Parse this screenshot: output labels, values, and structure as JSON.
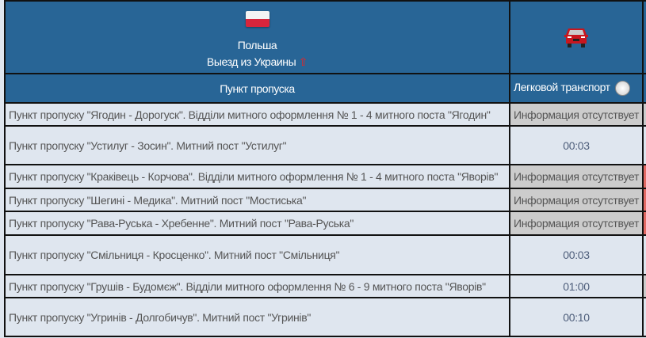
{
  "header": {
    "country": "Польша",
    "direction": "Выезд из Украины",
    "flag_icon": "poland-flag-icon",
    "direction_icon": "arrow-up-icon",
    "vehicle_icon": "car-icon",
    "col_checkpoint": "Пункт пропуска",
    "col_car": "Легковой транспорт",
    "clock_icon": "clock-icon"
  },
  "rows": [
    {
      "name": "Пункт пропуску \"Ягодин - Дорогуск\". Відділи митного оформлення № 1 - 4 митного поста \"Ягодин\"",
      "car": "Информация отсутствует",
      "status": "na",
      "next": "gray"
    },
    {
      "name": "Пункт пропуску \"Устилуг - Зосин\". Митний пост \"Устилуг\"",
      "car": "00:03",
      "status": "ok",
      "next": "none"
    },
    {
      "name": "Пункт пропуску \"Краківець - Корчова\". Відділи митного оформлення № 1 - 4 митного поста \"Яворів\"",
      "car": "Информация отсутствует",
      "status": "na",
      "next": "red"
    },
    {
      "name": "Пункт пропуску \"Шегині - Медика\". Митний пост \"Мостиська\"",
      "car": "Информация отсутствует",
      "status": "na",
      "next": "red"
    },
    {
      "name": "Пункт пропуску \"Рава-Руська - Хребенне\". Митний пост \"Рава-Руська\"",
      "car": "Информация отсутствует",
      "status": "na",
      "next": "red"
    },
    {
      "name": "Пункт пропуску \"Смільниця - Кросценко\". Митний пост \"Смільниця\"",
      "car": "00:03",
      "status": "ok",
      "next": "none"
    },
    {
      "name": "Пункт пропуску \"Грушів - Будомєж\". Відділи митного оформлення № 6 - 9 митного поста \"Яворів\"",
      "car": "01:00",
      "status": "ok",
      "next": "gray"
    },
    {
      "name": "Пункт пропуску \"Угринів - Долгобичув\". Митний пост \"Угринів\"",
      "car": "00:10",
      "status": "ok",
      "next": "none"
    }
  ]
}
